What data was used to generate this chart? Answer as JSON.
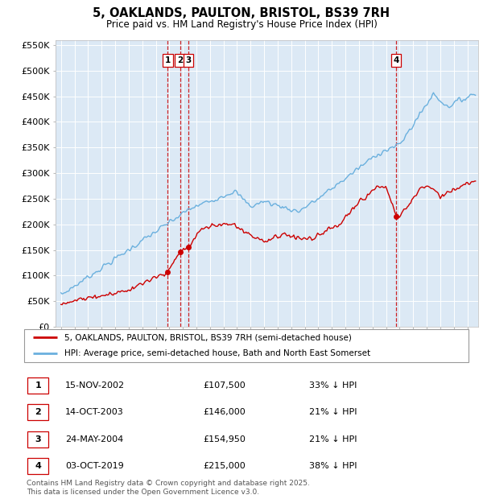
{
  "title": "5, OAKLANDS, PAULTON, BRISTOL, BS39 7RH",
  "subtitle": "Price paid vs. HM Land Registry's House Price Index (HPI)",
  "legend_line1": "5, OAKLANDS, PAULTON, BRISTOL, BS39 7RH (semi-detached house)",
  "legend_line2": "HPI: Average price, semi-detached house, Bath and North East Somerset",
  "footnote": "Contains HM Land Registry data © Crown copyright and database right 2025.\nThis data is licensed under the Open Government Licence v3.0.",
  "transactions": [
    {
      "num": 1,
      "date": "15-NOV-2002",
      "price": 107500,
      "pct": "33%",
      "x_year": 2002.88
    },
    {
      "num": 2,
      "date": "14-OCT-2003",
      "price": 146000,
      "pct": "21%",
      "x_year": 2003.79
    },
    {
      "num": 3,
      "date": "24-MAY-2004",
      "price": 154950,
      "pct": "21%",
      "x_year": 2004.4
    },
    {
      "num": 4,
      "date": "03-OCT-2019",
      "price": 215000,
      "pct": "38%",
      "x_year": 2019.75
    }
  ],
  "hpi_color": "#6ab0de",
  "price_color": "#cc0000",
  "plot_bg_color": "#dce9f5",
  "vline_color": "#cc0000",
  "ylim": [
    0,
    560000
  ],
  "xlim_start": 1994.6,
  "xlim_end": 2025.8,
  "yticks": [
    0,
    50000,
    100000,
    150000,
    200000,
    250000,
    300000,
    350000,
    400000,
    450000,
    500000,
    550000
  ],
  "ytick_labels": [
    "£0",
    "£50K",
    "£100K",
    "£150K",
    "£200K",
    "£250K",
    "£300K",
    "£350K",
    "£400K",
    "£450K",
    "£500K",
    "£550K"
  ],
  "table_data": [
    [
      1,
      "15-NOV-2002",
      "£107,500",
      "33% ↓ HPI"
    ],
    [
      2,
      "14-OCT-2003",
      "£146,000",
      "21% ↓ HPI"
    ],
    [
      3,
      "24-MAY-2004",
      "£154,950",
      "21% ↓ HPI"
    ],
    [
      4,
      "03-OCT-2019",
      "£215,000",
      "38% ↓ HPI"
    ]
  ]
}
